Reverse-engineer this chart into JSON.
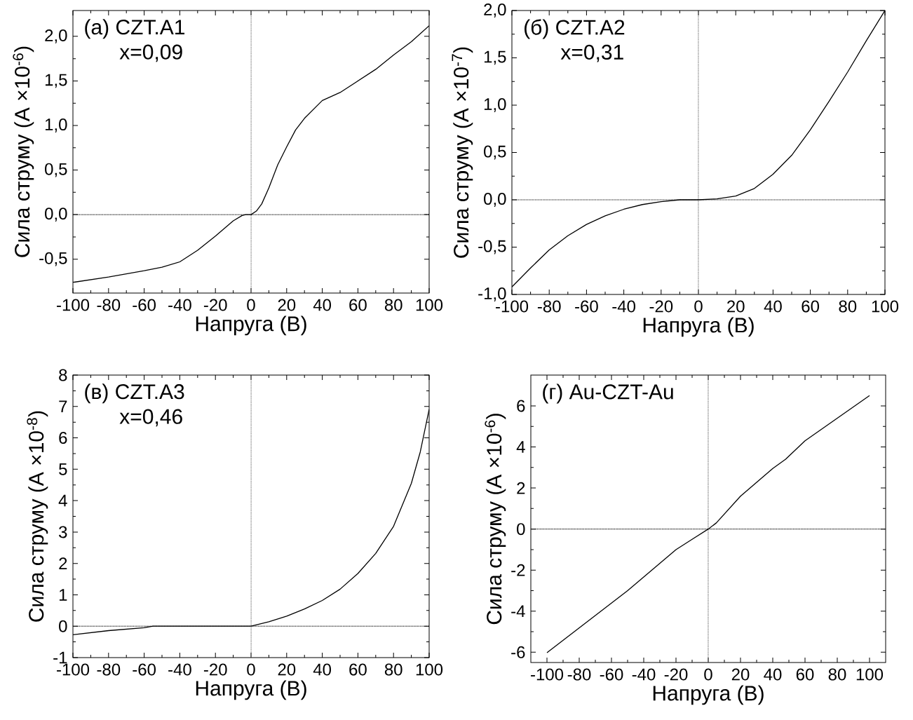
{
  "chart_data": [
    {
      "type": "line",
      "xlabel": "Напруга (В)",
      "ylabel": "Сила струму (А ×10$^{-6}$)",
      "annotations": [
        "(а) CZT.A1",
        "x=0,09"
      ],
      "xlim": [
        -100,
        100
      ],
      "ylim": [
        -0.88,
        2.29
      ],
      "xticks": [
        -100,
        -80,
        -60,
        -40,
        -20,
        0,
        20,
        40,
        60,
        80,
        100
      ],
      "yticks": [
        {
          "value": -0.5,
          "label": "-0,5"
        },
        {
          "value": 0,
          "label": "0,0"
        },
        {
          "value": 0.5,
          "label": "0,5"
        },
        {
          "value": 1,
          "label": "1,0"
        },
        {
          "value": 1.5,
          "label": "1,5"
        },
        {
          "value": 2,
          "label": "2,0"
        }
      ],
      "ref_lines": [
        {
          "axis": "x",
          "value": 0,
          "line_style": "dotted"
        },
        {
          "axis": "y",
          "value": 0,
          "line_style": "dotted"
        }
      ],
      "series": [
        {
          "color": "#000000",
          "x": [
            -100,
            -80,
            -60,
            -50,
            -40,
            -30,
            -20,
            -10,
            -5,
            -3,
            0,
            3,
            6,
            10,
            15,
            20,
            25,
            30,
            40,
            50,
            60,
            70,
            80,
            90,
            100
          ],
          "values": [
            -0.76,
            -0.7,
            -0.63,
            -0.59,
            -0.53,
            -0.4,
            -0.24,
            -0.07,
            -0.01,
            0,
            0,
            0.04,
            0.12,
            0.3,
            0.56,
            0.76,
            0.95,
            1.08,
            1.28,
            1.37,
            1.5,
            1.63,
            1.79,
            1.94,
            2.12
          ]
        }
      ]
    },
    {
      "type": "line",
      "xlabel": "Напруга (В)",
      "ylabel": "Сила струму (А ×10$^{-7}$)",
      "annotations": [
        "(б)  CZT.A2",
        "x=0,31"
      ],
      "xlim": [
        -100,
        100
      ],
      "ylim": [
        -1,
        2
      ],
      "xticks": [
        -100,
        -80,
        -60,
        -40,
        -20,
        0,
        20,
        40,
        60,
        80,
        100
      ],
      "yticks": [
        {
          "value": -1,
          "label": "-1,0"
        },
        {
          "value": -0.5,
          "label": "-0,5"
        },
        {
          "value": 0,
          "label": "0,0"
        },
        {
          "value": 0.5,
          "label": "0,5"
        },
        {
          "value": 1,
          "label": "1,0"
        },
        {
          "value": 1.5,
          "label": "1,5"
        },
        {
          "value": 2,
          "label": "2,0"
        }
      ],
      "ref_lines": [
        {
          "axis": "x",
          "value": 0,
          "line_style": "dotted"
        },
        {
          "axis": "y",
          "value": 0,
          "line_style": "dotted"
        }
      ],
      "series": [
        {
          "color": "#000000",
          "x": [
            -100,
            -90,
            -80,
            -70,
            -60,
            -50,
            -40,
            -30,
            -20,
            -10,
            0,
            10,
            20,
            30,
            40,
            50,
            60,
            70,
            80,
            90,
            100
          ],
          "values": [
            -0.92,
            -0.72,
            -0.53,
            -0.38,
            -0.26,
            -0.17,
            -0.1,
            -0.05,
            -0.02,
            0,
            0,
            0.01,
            0.04,
            0.12,
            0.27,
            0.47,
            0.74,
            1.04,
            1.35,
            1.68,
            2.0
          ]
        }
      ]
    },
    {
      "type": "line",
      "xlabel": "Напруга (В)",
      "ylabel": "Сила струму (А ×10$^{-8}$)",
      "annotations": [
        "(в)  CZT.A3",
        "x=0,46"
      ],
      "xlim": [
        -100,
        100
      ],
      "ylim": [
        -1,
        8
      ],
      "xticks": [
        -100,
        -80,
        -60,
        -40,
        -20,
        0,
        20,
        40,
        60,
        80,
        100
      ],
      "yticks": [
        -1,
        0,
        1,
        2,
        3,
        4,
        5,
        6,
        7,
        8
      ],
      "ref_lines": [
        {
          "axis": "x",
          "value": 0,
          "line_style": "dotted"
        },
        {
          "axis": "y",
          "value": 0,
          "line_style": "dotted"
        }
      ],
      "series": [
        {
          "color": "#000000",
          "x": [
            -100,
            -80,
            -60,
            -55,
            0,
            10,
            20,
            30,
            40,
            50,
            60,
            70,
            80,
            90,
            95,
            100
          ],
          "values": [
            -0.27,
            -0.14,
            -0.05,
            0,
            0,
            0.14,
            0.32,
            0.55,
            0.82,
            1.18,
            1.68,
            2.32,
            3.18,
            4.55,
            5.55,
            6.91
          ]
        }
      ]
    },
    {
      "type": "line",
      "xlabel": "Напруга (В)",
      "ylabel": "Сила струму (А ×10$^{-6}$)",
      "annotations": [
        "(г)  Au-CZT-Au"
      ],
      "xlim": [
        -110,
        110
      ],
      "ylim": [
        -6.5,
        7.5
      ],
      "xticks": [
        -100,
        -80,
        -60,
        -40,
        -20,
        0,
        20,
        40,
        60,
        80,
        100
      ],
      "yticks": [
        -6,
        -4,
        -2,
        0,
        2,
        4,
        6
      ],
      "ref_lines": [
        {
          "axis": "x",
          "value": 0,
          "line_style": "dotted"
        },
        {
          "axis": "y",
          "value": 0,
          "line_style": "dotted"
        }
      ],
      "series": [
        {
          "color": "#000000",
          "x": [
            -100,
            -50,
            -20,
            -10,
            0,
            5,
            20,
            40,
            48,
            60,
            80,
            100
          ],
          "values": [
            -6.02,
            -3.0,
            -1.0,
            -0.5,
            0,
            0.3,
            1.6,
            2.95,
            3.4,
            4.3,
            5.4,
            6.5
          ]
        }
      ]
    }
  ]
}
